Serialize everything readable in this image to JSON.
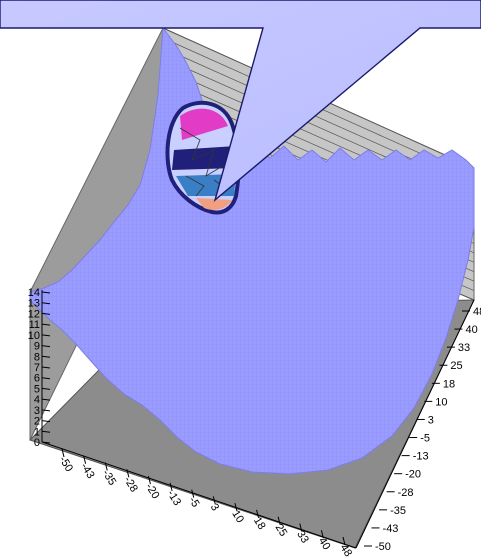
{
  "chart_data": {
    "type": "surface",
    "title": "",
    "xlabel": "",
    "ylabel": "",
    "zlabel": "",
    "z_ticks": [
      "0",
      "1",
      "2",
      "3",
      "4",
      "5",
      "6",
      "7",
      "8",
      "9",
      "10",
      "11",
      "12",
      "13",
      "14"
    ],
    "x_ticks": [
      "-50",
      "-43",
      "-35",
      "-28",
      "-20",
      "-13",
      "-5",
      "3",
      "10",
      "18",
      "25",
      "33",
      "40",
      "48"
    ],
    "y_ticks": [
      "48",
      "40",
      "33",
      "25",
      "18",
      "10",
      "3",
      "-5",
      "-13",
      "-20",
      "-28",
      "-35",
      "-43",
      "-50"
    ],
    "zlim": [
      0,
      14
    ],
    "xlim": [
      -50,
      48
    ],
    "ylim": [
      -50,
      48
    ],
    "grid": true,
    "surface_color": "#9a9cff",
    "magnifier": {
      "shown": true,
      "colors": [
        "#e23cc6",
        "#20207a",
        "#c9d0ff",
        "#3a7fc6",
        "#f0a080"
      ]
    }
  }
}
